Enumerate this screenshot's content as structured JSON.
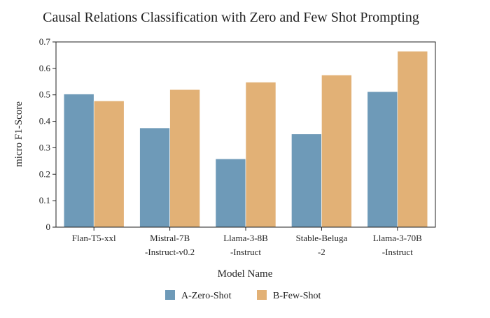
{
  "chart_data": {
    "type": "bar",
    "title": "Causal Relations Classification with Zero and Few Shot Prompting",
    "xlabel": "Model Name",
    "ylabel": "micro F1-Score",
    "categories": [
      [
        "Flan-T5-xxl"
      ],
      [
        "Mistral-7B",
        "-Instruct-v0.2"
      ],
      [
        "Llama-3-8B",
        "-Instruct"
      ],
      [
        "Stable-Beluga",
        "-2"
      ],
      [
        "Llama-3-70B",
        "-Instruct"
      ]
    ],
    "series": [
      {
        "name": "A-Zero-Shot",
        "color": "#6e9ab8",
        "values": [
          0.503,
          0.375,
          0.258,
          0.352,
          0.512
        ]
      },
      {
        "name": "B-Few-Shot",
        "color": "#e2b176",
        "values": [
          0.477,
          0.52,
          0.548,
          0.575,
          0.665
        ]
      }
    ],
    "ylim": [
      0,
      0.7
    ],
    "yticks": [
      "0",
      "0.1",
      "0.2",
      "0.3",
      "0.4",
      "0.5",
      "0.6",
      "0.7"
    ],
    "grid": false,
    "legend_position": "bottom-center"
  }
}
